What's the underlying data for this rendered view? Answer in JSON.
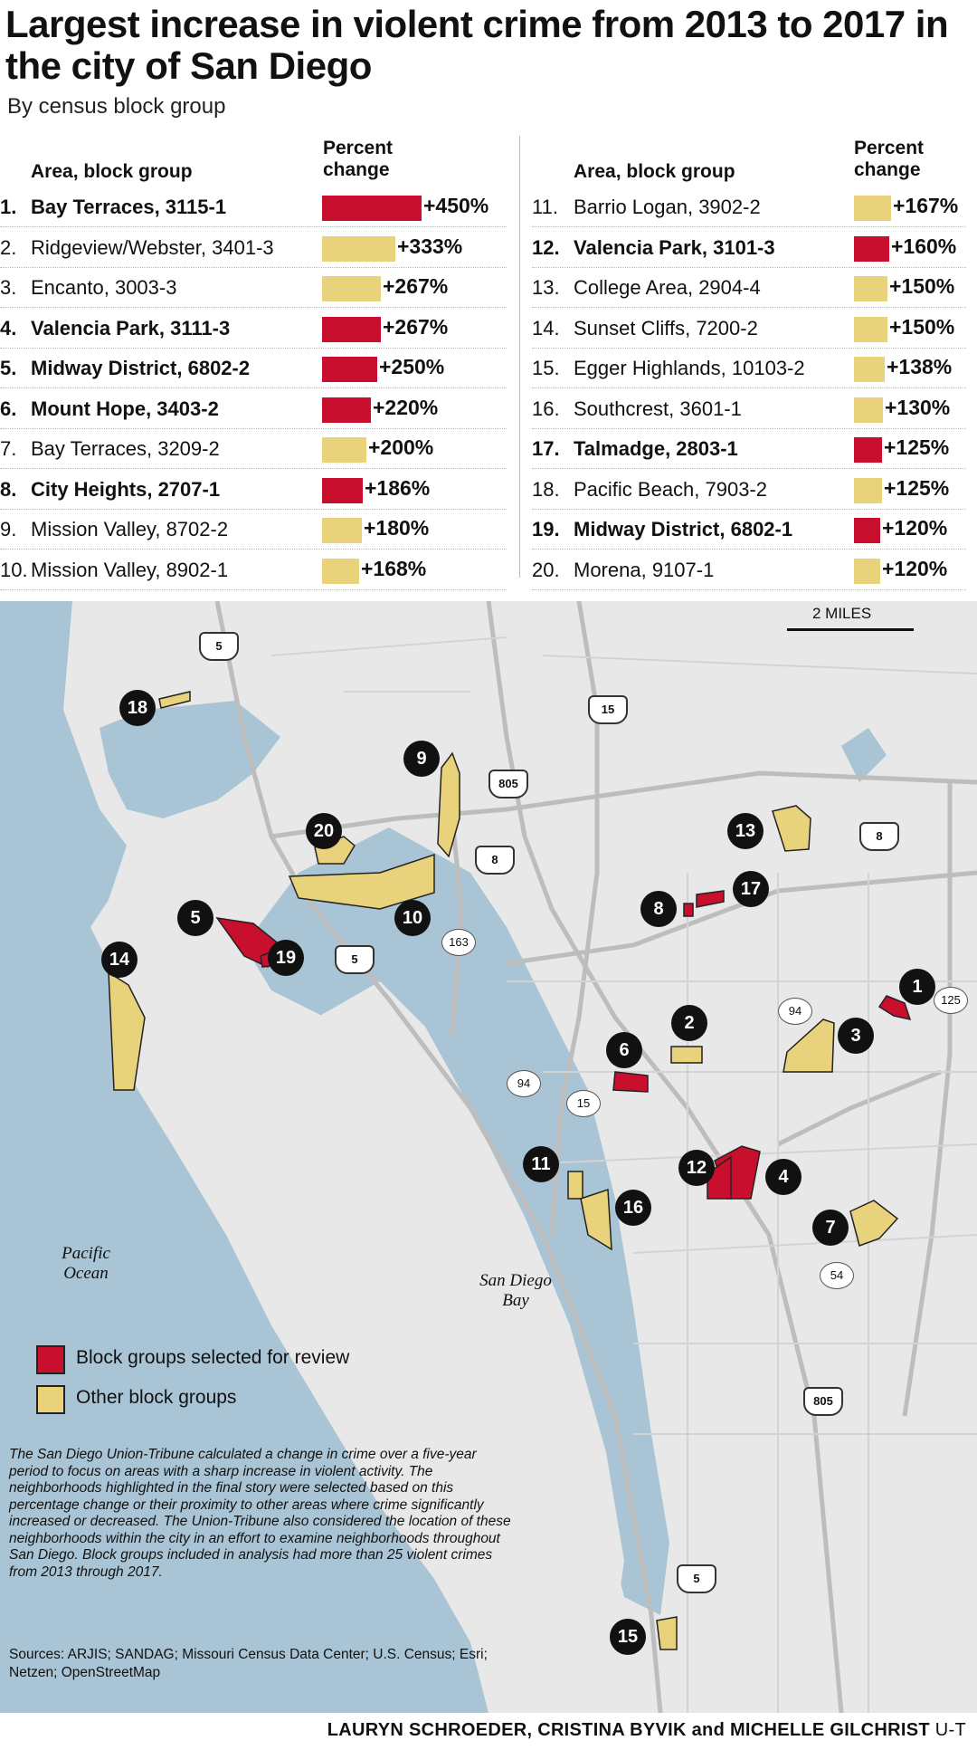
{
  "title": "Largest increase in violent crime from 2013 to 2017 in the city of San Diego",
  "subtitle": "By census block group",
  "table_headers": {
    "area": "Area, block group",
    "pct_line1": "Percent",
    "pct_line2": "change"
  },
  "rows": [
    {
      "num": "1.",
      "label": "Bay Terraces, 3115-1",
      "value": "+450%",
      "pct": 450,
      "selected": true
    },
    {
      "num": "2.",
      "label": "Ridgeview/Webster, 3401-3",
      "value": "+333%",
      "pct": 333,
      "selected": false
    },
    {
      "num": "3.",
      "label": "Encanto, 3003-3",
      "value": "+267%",
      "pct": 267,
      "selected": false
    },
    {
      "num": "4.",
      "label": "Valencia Park, 3111-3",
      "value": "+267%",
      "pct": 267,
      "selected": true
    },
    {
      "num": "5.",
      "label": "Midway District, 6802-2",
      "value": "+250%",
      "pct": 250,
      "selected": true
    },
    {
      "num": "6.",
      "label": "Mount Hope, 3403-2",
      "value": "+220%",
      "pct": 220,
      "selected": true
    },
    {
      "num": "7.",
      "label": "Bay Terraces, 3209-2",
      "value": "+200%",
      "pct": 200,
      "selected": false
    },
    {
      "num": "8.",
      "label": "City Heights, 2707-1",
      "value": "+186%",
      "pct": 186,
      "selected": true
    },
    {
      "num": "9.",
      "label": "Mission Valley, 8702-2",
      "value": "+180%",
      "pct": 180,
      "selected": false
    },
    {
      "num": "10.",
      "label": "Mission Valley, 8902-1",
      "value": "+168%",
      "pct": 168,
      "selected": false
    },
    {
      "num": "11.",
      "label": "Barrio Logan, 3902-2",
      "value": "+167%",
      "pct": 167,
      "selected": false
    },
    {
      "num": "12.",
      "label": "Valencia Park, 3101-3",
      "value": "+160%",
      "pct": 160,
      "selected": true
    },
    {
      "num": "13.",
      "label": "College Area, 2904-4",
      "value": "+150%",
      "pct": 150,
      "selected": false
    },
    {
      "num": "14.",
      "label": "Sunset Cliffs, 7200-2",
      "value": "+150%",
      "pct": 150,
      "selected": false
    },
    {
      "num": "15.",
      "label": "Egger Highlands, 10103-2",
      "value": "+138%",
      "pct": 138,
      "selected": false
    },
    {
      "num": "16.",
      "label": "Southcrest, 3601-1",
      "value": "+130%",
      "pct": 130,
      "selected": false
    },
    {
      "num": "17.",
      "label": "Talmadge, 2803-1",
      "value": "+125%",
      "pct": 125,
      "selected": true
    },
    {
      "num": "18.",
      "label": "Pacific Beach, 7903-2",
      "value": "+125%",
      "pct": 125,
      "selected": false
    },
    {
      "num": "19.",
      "label": "Midway District, 6802-1",
      "value": "+120%",
      "pct": 120,
      "selected": true
    },
    {
      "num": "20.",
      "label": "Morena, 9107-1",
      "value": "+120%",
      "pct": 120,
      "selected": false
    }
  ],
  "colors": {
    "selected": "#c8102e",
    "other": "#e9d27c",
    "water": "#a9c4d4",
    "land": "#e8e8e8",
    "road": "#bdbdbd"
  },
  "map": {
    "scale_label": "2 MILES",
    "place_labels": {
      "ocean": "Pacific Ocean",
      "bay": "San Diego Bay"
    },
    "interstates": [
      "5",
      "15",
      "805",
      "8",
      "8",
      "5",
      "805",
      "5"
    ],
    "routes": [
      "163",
      "94",
      "94",
      "15",
      "54",
      "125"
    ],
    "markers": [
      "1",
      "2",
      "3",
      "4",
      "5",
      "6",
      "7",
      "8",
      "9",
      "10",
      "11",
      "12",
      "13",
      "14",
      "15",
      "16",
      "17",
      "18",
      "19",
      "20"
    ]
  },
  "legend": {
    "selected": "Block groups selected for review",
    "other": "Other block groups"
  },
  "note": "The San Diego Union-Tribune calculated a change in crime over a five-year period to focus on areas with a sharp increase in violent activity. The neighborhoods highlighted in the final story were selected based on this percentage change or their proximity to other areas where crime significantly increased or decreased. The Union-Tribune also considered the location of these neighborhoods within the city in an effort to examine neighborhoods throughout San Diego. Block groups included in analysis had more than 25 violent crimes from 2013 through 2017.",
  "sources": "Sources: ARJIS; SANDAG; Missouri Census Data Center; U.S. Census; Esri; Netzen; OpenStreetMap",
  "credit": {
    "names": "LAURYN SCHROEDER, CRISTINA BYVIK and MICHELLE GILCHRIST",
    "publisher": "U-T"
  }
}
